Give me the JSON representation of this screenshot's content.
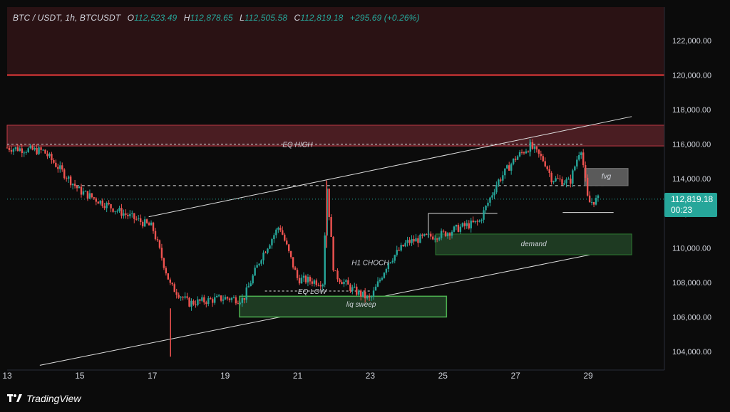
{
  "header": {
    "symbol": "BTC / USDT, 1h, BTCUSDT",
    "o_label": "O",
    "o_value": "112,523.49",
    "h_label": "H",
    "h_value": "112,878.65",
    "l_label": "L",
    "l_value": "112,505.58",
    "c_label": "C",
    "c_value": "112,819.18",
    "change": "+295.69 (+0.26%)"
  },
  "price_tag": {
    "price": "112,819.18",
    "countdown": "00:23"
  },
  "brand": {
    "name": "TradingView"
  },
  "colors": {
    "up": "#26a69a",
    "down": "#ef5350",
    "bg": "#0b0b0b",
    "supply_zone": "#4a1d22",
    "demand_zone": "#1e3a22",
    "zone_border": "#4caf50"
  },
  "chart_data": {
    "type": "line",
    "title": "BTC / USDT, 1h",
    "x": [
      "13",
      "14",
      "15",
      "16",
      "17",
      "17.5",
      "18",
      "19",
      "19.5",
      "20",
      "20.5",
      "21",
      "21.7",
      "21.8",
      "22",
      "22.5",
      "23",
      "23.5",
      "24",
      "24.5",
      "25",
      "25.5",
      "26",
      "26.5",
      "27",
      "27.4",
      "27.8",
      "28",
      "28.5",
      "28.8",
      "29",
      "29.3"
    ],
    "series": [
      {
        "values": [
          115800,
          115600,
          113300,
          112200,
          111200,
          107800,
          106800,
          107100,
          107000,
          109500,
          111300,
          108200,
          108000,
          113700,
          108500,
          107600,
          107000,
          109200,
          110300,
          110600,
          110800,
          111200,
          111500,
          113800,
          115200,
          115900,
          115000,
          114000,
          113800,
          115900,
          112600,
          112819
        ]
      }
    ],
    "y_ticks": [
      "104,000.00",
      "106,000.00",
      "108,000.00",
      "110,000.00",
      "112,000.00",
      "114,000.00",
      "116,000.00",
      "118,000.00",
      "120,000.00",
      "122,000.00"
    ],
    "x_ticks": [
      "13",
      "15",
      "17",
      "19",
      "21",
      "23",
      "25",
      "27",
      "29"
    ],
    "ylim": [
      103000,
      124000
    ],
    "grid": false,
    "annotations": {
      "eq_high": "EQ HIGH",
      "eq_low": "EQ LOW",
      "h1_choch": "H1 CHOCH",
      "liq_sweep": "liq sweep",
      "demand": "demand",
      "fvg": "fvg"
    },
    "levels": {
      "red_line": 120000,
      "supply_zone": [
        115900,
        117100
      ],
      "eq_high": 116000,
      "mid_dashed": 113600,
      "eq_low": 107500,
      "demand_zone": [
        109600,
        110800
      ],
      "liq_sweep_zone": [
        106000,
        107200
      ],
      "fvg_zone": [
        113600,
        114600
      ],
      "top_zone": [
        120000,
        124000
      ],
      "current_price": 112819.18
    }
  }
}
